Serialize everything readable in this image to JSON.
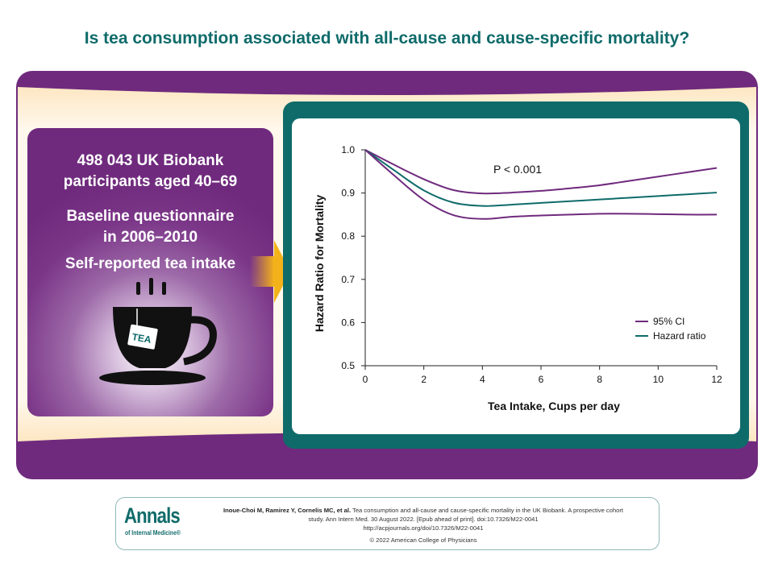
{
  "title": "Is tea consumption associated with all-cause and cause-specific mortality?",
  "left_panel": {
    "participants_line1": "498 043 UK Biobank",
    "participants_line2": "participants aged 40–69",
    "baseline_line1": "Baseline questionnaire",
    "baseline_line2": "in 2006–2010",
    "intake": "Self-reported tea intake",
    "tea_tag": "TEA",
    "cup_icon": "tea-cup-icon"
  },
  "colors": {
    "purple": "#6f2a7d",
    "teal": "#0f6b6a",
    "arrow_yellow": "#f3b21a",
    "cream": "#fdf3e1"
  },
  "chart_data": {
    "type": "line",
    "xlabel": "Tea Intake, Cups per day",
    "ylabel": "Hazard Ratio for Mortality",
    "xlim": [
      0,
      12
    ],
    "ylim": [
      0.5,
      1.0
    ],
    "x_ticks": [
      0,
      2,
      4,
      6,
      8,
      10,
      12
    ],
    "y_ticks": [
      "0.5",
      "0.6",
      "0.7",
      "0.8",
      "0.9",
      "1.0"
    ],
    "annotation": "P < 0.001",
    "legend_position": "bottom-right",
    "series": [
      {
        "name": "95% CI",
        "role": "upper",
        "color": "#6f2a7d",
        "points": [
          [
            0,
            1.0
          ],
          [
            1,
            0.965
          ],
          [
            2,
            0.932
          ],
          [
            3,
            0.907
          ],
          [
            4,
            0.899
          ],
          [
            5,
            0.901
          ],
          [
            6,
            0.905
          ],
          [
            7,
            0.911
          ],
          [
            8,
            0.918
          ],
          [
            9,
            0.928
          ],
          [
            10,
            0.938
          ],
          [
            11,
            0.948
          ],
          [
            12,
            0.958
          ]
        ]
      },
      {
        "name": "Hazard ratio",
        "color": "#0f6b6a",
        "points": [
          [
            0,
            1.0
          ],
          [
            1,
            0.952
          ],
          [
            2,
            0.906
          ],
          [
            3,
            0.878
          ],
          [
            4,
            0.87
          ],
          [
            5,
            0.873
          ],
          [
            6,
            0.877
          ],
          [
            7,
            0.881
          ],
          [
            8,
            0.885
          ],
          [
            9,
            0.889
          ],
          [
            10,
            0.893
          ],
          [
            11,
            0.897
          ],
          [
            12,
            0.901
          ]
        ]
      },
      {
        "name": "95% CI",
        "role": "lower",
        "color": "#6f2a7d",
        "points": [
          [
            0,
            1.0
          ],
          [
            1,
            0.94
          ],
          [
            2,
            0.884
          ],
          [
            3,
            0.849
          ],
          [
            4,
            0.84
          ],
          [
            5,
            0.845
          ],
          [
            6,
            0.848
          ],
          [
            7,
            0.85
          ],
          [
            8,
            0.852
          ],
          [
            9,
            0.852
          ],
          [
            10,
            0.851
          ],
          [
            11,
            0.85
          ],
          [
            12,
            0.85
          ]
        ]
      }
    ],
    "legend": [
      {
        "label": "95% CI",
        "color": "#6f2a7d"
      },
      {
        "label": "Hazard ratio",
        "color": "#0f6b6a"
      }
    ]
  },
  "footer": {
    "logo_main": "Annals",
    "logo_sub": "of Internal Medicine®",
    "citation_authors": "Inoue-Choi M, Ramirez Y, Cornelis MC, et al.",
    "citation_title": " Tea consumption and all-cause and cause-specific mortality in the UK Biobank. A prospective cohort",
    "citation_line2": "study. Ann Intern Med. 30 August 2022. [Epub ahead of print]. doi:10.7326/M22-0041",
    "citation_url": "http://acpjournals.org/doi/10.7326/M22-0041",
    "copyright": "© 2022 American College of Physicians"
  }
}
